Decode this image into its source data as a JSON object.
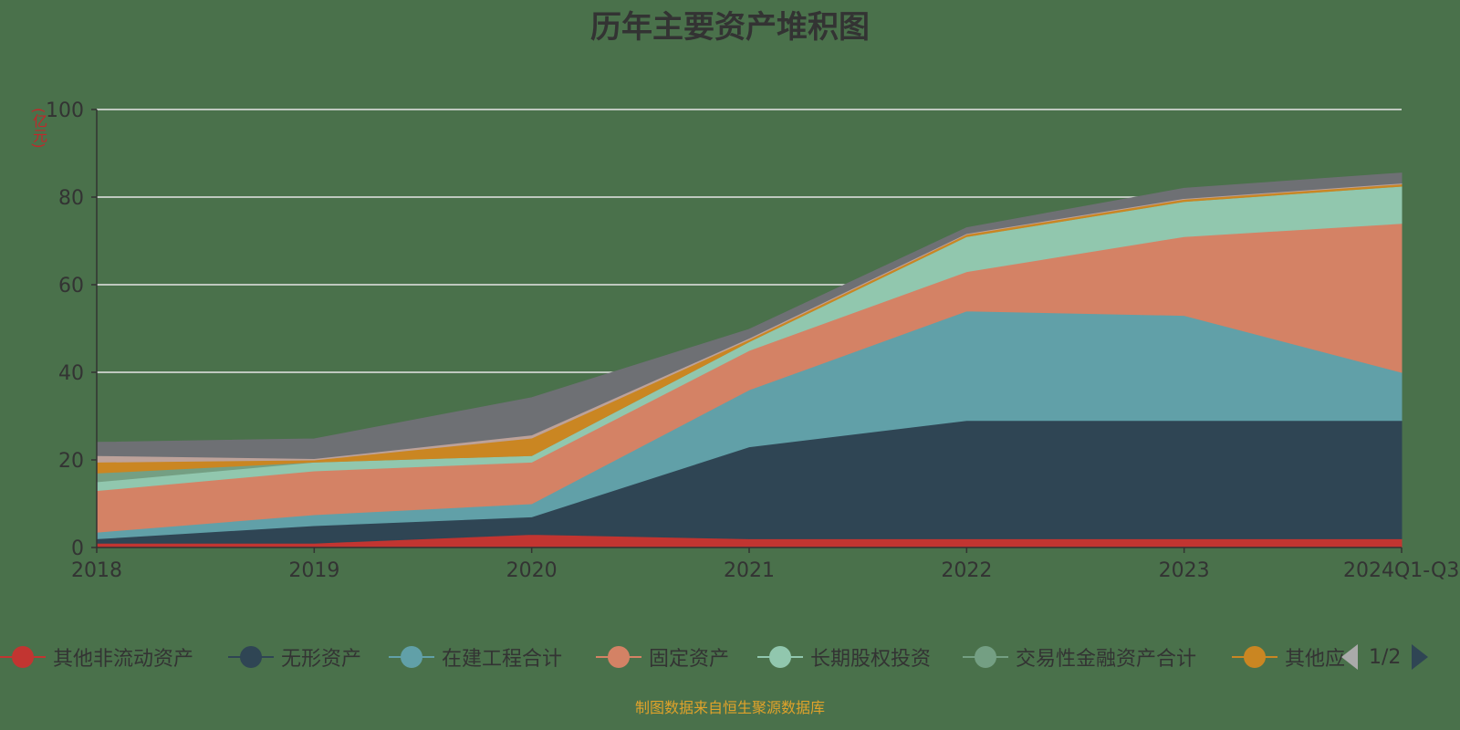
{
  "title": "历年主要资产堆积图",
  "unit_label": "(亿元)",
  "source": "制图数据来自恒生聚源数据库",
  "legend_pager": {
    "text": "1/2"
  },
  "chart_data": {
    "type": "area",
    "stacked": true,
    "categories": [
      "2018",
      "2019",
      "2020",
      "2021",
      "2022",
      "2023",
      "2024Q1-Q3"
    ],
    "ylim": [
      0,
      100
    ],
    "yticks": [
      0,
      20,
      40,
      60,
      80,
      100
    ],
    "grid": true,
    "legend_position": "bottom",
    "series": [
      {
        "name": "其他非流动资产",
        "color": "#c23531",
        "values": [
          1,
          1,
          3,
          2,
          2,
          2,
          2
        ],
        "legend": true
      },
      {
        "name": "无形资产",
        "color": "#2f4554",
        "values": [
          1,
          4,
          4,
          21,
          27,
          27,
          27
        ],
        "legend": true
      },
      {
        "name": "在建工程合计",
        "color": "#61a0a8",
        "values": [
          1.5,
          2.5,
          3,
          13,
          25,
          24,
          11
        ],
        "legend": true
      },
      {
        "name": "固定资产",
        "color": "#d48265",
        "values": [
          9.5,
          10,
          9.5,
          9,
          9,
          18,
          34
        ],
        "legend": true
      },
      {
        "name": "长期股权投资",
        "color": "#91c7ae",
        "values": [
          2,
          2,
          1.5,
          2,
          8,
          8,
          8.5
        ],
        "legend": true
      },
      {
        "name": "交易性金融资产合计",
        "color": "#749f83",
        "values": [
          2,
          0,
          0,
          0,
          0,
          0,
          0
        ],
        "legend": true
      },
      {
        "name": "其他应",
        "color": "#ca8622",
        "values": [
          2.5,
          0.5,
          4,
          0.5,
          0.5,
          0.5,
          0.5
        ],
        "legend": true
      },
      {
        "name": "",
        "color": "#bda29a",
        "values": [
          1.5,
          0.3,
          0.7,
          0.3,
          0.2,
          0.2,
          0.2
        ],
        "legend": false
      },
      {
        "name": "",
        "color": "#6e7074",
        "values": [
          3,
          4.5,
          8.5,
          2,
          1.3,
          2.3,
          2.3
        ],
        "legend": false
      }
    ]
  }
}
